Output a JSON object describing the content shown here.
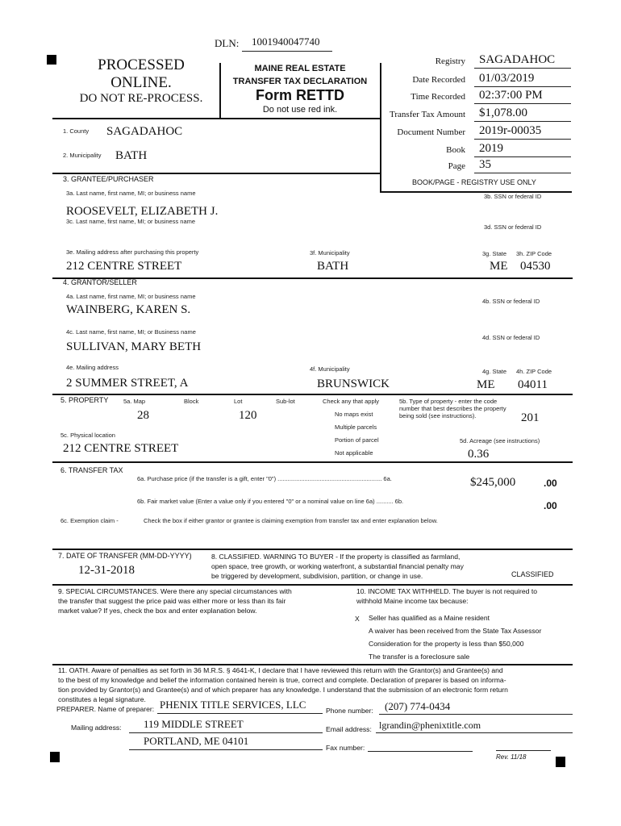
{
  "header": {
    "dln_label": "DLN:",
    "dln": "1001940047740",
    "stamp_line1": "PROCESSED",
    "stamp_line2": "ONLINE.",
    "stamp_line3": "DO NOT RE-PROCESS.",
    "title1": "MAINE REAL ESTATE",
    "title2": "TRANSFER TAX DECLARATION",
    "form_name": "Form RETTD",
    "ink_note": "Do not use red ink."
  },
  "registry": {
    "fields": [
      {
        "label": "Registry",
        "value": "SAGADAHOC"
      },
      {
        "label": "Date Recorded",
        "value": "01/03/2019"
      },
      {
        "label": "Time Recorded",
        "value": "02:37:00 PM"
      },
      {
        "label": "Transfer Tax Amount",
        "value": "$1,078.00"
      },
      {
        "label": "Document Number",
        "value": "2019r-00035"
      },
      {
        "label": "Book",
        "value": "2019"
      },
      {
        "label": "Page",
        "value": "35"
      }
    ],
    "note": "BOOK/PAGE - REGISTRY USE ONLY"
  },
  "county": {
    "label": "1. County",
    "value": "SAGADAHOC"
  },
  "municipality": {
    "label": "2. Municipality",
    "value": "BATH"
  },
  "grantee": {
    "heading": "3. GRANTEE/PURCHASER",
    "a_label": "3a. Last name, first name, MI; or business name",
    "a_value": "ROOSEVELT, ELIZABETH J.",
    "b_label": "3b. SSN or federal ID",
    "c_label": "3c. Last name, first name, MI; or business name",
    "d_label": "3d. SSN or federal ID",
    "e_label": "3e. Mailing address after purchasing this property",
    "e_value": "212 CENTRE STREET",
    "f_label": "3f. Municipality",
    "f_value": "BATH",
    "g_label": "3g. State",
    "g_value": "ME",
    "h_label": "3h. ZIP Code",
    "h_value": "04530"
  },
  "grantor": {
    "heading": "4. GRANTOR/SELLER",
    "a_label": "4a. Last name, first name, MI; or business name",
    "a_value": "WAINBERG, KAREN S.",
    "b_label": "4b. SSN or federal ID",
    "c_label": "4c. Last name, first name, MI; or Business name",
    "c_value": "SULLIVAN, MARY BETH",
    "d_label": "4d. SSN or federal ID",
    "e_label": "4e. Mailing address",
    "e_value": "2 SUMMER STREET, A",
    "f_label": "4f. Municipality",
    "f_value": "BRUNSWICK",
    "g_label": "4g. State",
    "g_value": "ME",
    "h_label": "4h. ZIP Code",
    "h_value": "04011"
  },
  "property": {
    "heading": "5. PROPERTY",
    "map_label": "5a. Map",
    "block_label": "Block",
    "lot_label": "Lot",
    "sublot_label": "Sub-lot",
    "map_value": "28",
    "lot_value": "120",
    "check_label": "Check any that apply",
    "checks": [
      "No maps exist",
      "Multiple parcels",
      "Portion of parcel",
      "Not applicable"
    ],
    "type_label": "5b. Type of property - enter the code number that best describes the property being sold (see instructions).",
    "type_value": "201",
    "location_label": "5c. Physical location",
    "location_value": "212 CENTRE STREET",
    "acreage_label": "5d. Acreage (see instructions)",
    "acreage_value": "0.36"
  },
  "transfer_tax": {
    "heading": "6. TRANSFER TAX",
    "a_label": "6a. Purchase price (if the transfer is a gift, enter \"0\") .............................................................. 6a.",
    "a_value": "$245,000",
    "a_cents": ".00",
    "b_label": "6b. Fair market value (Enter a value only if you entered \"0\" or a nominal value on line 6a) .......... 6b.",
    "b_cents": ".00",
    "c_label": "6c. Exemption claim -",
    "c_text": "Check the box if either grantor or grantee is claiming exemption from transfer tax and enter explanation below."
  },
  "date_of_transfer": {
    "label": "7. DATE OF TRANSFER (MM-DD-YYYY)",
    "value": "12-31-2018"
  },
  "classified": {
    "lines": [
      "8. CLASSIFIED. WARNING TO BUYER - If the property is classified as farmland,",
      "open space, tree growth, or working waterfront, a substantial financial penalty may",
      "be triggered by development, subdivision, partition, or change in use."
    ],
    "status": "CLASSIFIED"
  },
  "special": {
    "lines": [
      "9. SPECIAL CIRCUMSTANCES. Were there any special circumstances with",
      "the transfer that suggest the price paid was either more or less than its fair",
      "market value? If yes, check the box and enter explanation below."
    ]
  },
  "withholding": {
    "lines": [
      "10. INCOME TAX WITHHELD. The buyer is not required to",
      "withhold Maine income tax because:"
    ],
    "mark": "X",
    "options": [
      "Seller has qualified as a Maine resident",
      "A waiver has been received from the State Tax Assessor",
      "Consideration for the property is less than $50,000",
      "The transfer is a foreclosure sale"
    ]
  },
  "oath": {
    "lines": [
      "11. OATH. Aware of penalties as set forth in 36 M.R.S. § 4641-K, I declare that I have reviewed this return with the Grantor(s) and Grantee(s) and",
      "to the best of my knowledge and belief the information contained herein is true, correct and complete. Declaration of preparer is based on informa-",
      "tion provided by Grantor(s) and Grantee(s) and of which preparer has any knowledge. I understand that the submission of an electronic form return",
      "constitutes a legal signature."
    ]
  },
  "preparer": {
    "name_label": "PREPARER. Name of preparer:",
    "name_value": "PHENIX TITLE SERVICES, LLC",
    "phone_label": "Phone number:",
    "phone_value": "(207) 774-0434",
    "address_label": "Mailing address:",
    "address_line1": "119 MIDDLE STREET",
    "address_line2": "PORTLAND, ME 04101",
    "email_label": "Email address:",
    "email_value": "lgrandin@phenixtitle.com",
    "fax_label": "Fax number:"
  },
  "revision": "Rev. 11/18"
}
